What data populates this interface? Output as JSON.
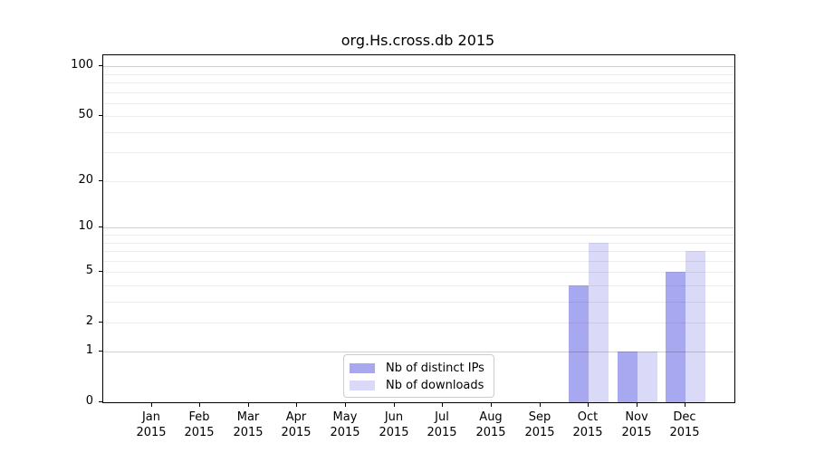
{
  "chart_data": {
    "type": "bar",
    "title": "org.Hs.cross.db 2015",
    "categories": [
      {
        "label": "Jan",
        "year": "2015"
      },
      {
        "label": "Feb",
        "year": "2015"
      },
      {
        "label": "Mar",
        "year": "2015"
      },
      {
        "label": "Apr",
        "year": "2015"
      },
      {
        "label": "May",
        "year": "2015"
      },
      {
        "label": "Jun",
        "year": "2015"
      },
      {
        "label": "Jul",
        "year": "2015"
      },
      {
        "label": "Aug",
        "year": "2015"
      },
      {
        "label": "Sep",
        "year": "2015"
      },
      {
        "label": "Oct",
        "year": "2015"
      },
      {
        "label": "Nov",
        "year": "2015"
      },
      {
        "label": "Dec",
        "year": "2015"
      }
    ],
    "series": [
      {
        "name": "Nb of distinct IPs",
        "color": "#a8a8f0",
        "values": [
          0,
          0,
          0,
          0,
          0,
          0,
          0,
          0,
          0,
          4,
          1,
          5
        ]
      },
      {
        "name": "Nb of downloads",
        "color": "#dadaf8",
        "values": [
          0,
          0,
          0,
          0,
          0,
          0,
          0,
          0,
          0,
          8,
          1,
          7
        ]
      }
    ],
    "y_axis": {
      "scale": "log10(1+value)",
      "tick_values": [
        0,
        1,
        2,
        5,
        10,
        20,
        50,
        100
      ],
      "range": [
        0,
        117
      ]
    },
    "grid": {
      "minor_values": [
        2,
        3,
        4,
        5,
        6,
        7,
        8,
        9,
        20,
        30,
        40,
        50,
        60,
        70,
        80,
        90
      ],
      "major_values": [
        1,
        10,
        100
      ]
    },
    "legend": {
      "location": "lower-center-inside"
    }
  }
}
